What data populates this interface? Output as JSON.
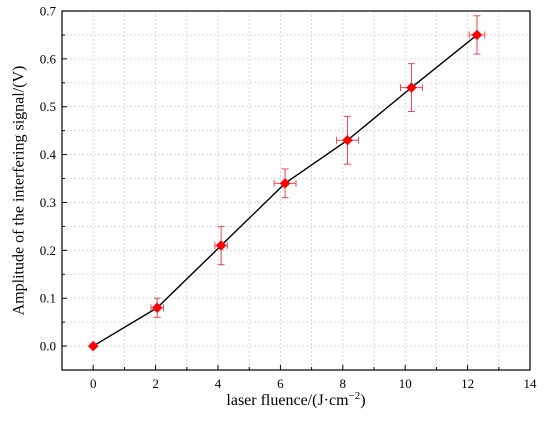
{
  "chart_data": {
    "type": "scatter",
    "title": "",
    "xlabel": "laser fluence/(J·cm",
    "xlabel_sup": "−2",
    "xlabel_close": ")",
    "ylabel": "Amplitude of the interfering signal/(V)",
    "xlim": [
      -1,
      14
    ],
    "ylim": [
      -0.05,
      0.7
    ],
    "x_ticks": [
      0,
      2,
      4,
      6,
      8,
      10,
      12,
      14
    ],
    "x_tick_labels": [
      "0",
      "2",
      "4",
      "6",
      "8",
      "10",
      "12",
      "14"
    ],
    "y_ticks": [
      0.0,
      0.1,
      0.2,
      0.3,
      0.4,
      0.5,
      0.6,
      0.7
    ],
    "y_tick_labels": [
      "0.0",
      "0.1",
      "0.2",
      "0.3",
      "0.4",
      "0.5",
      "0.6",
      "0.7"
    ],
    "grid": true,
    "series": [
      {
        "x": [
          0,
          2.05,
          4.1,
          6.15,
          8.15,
          10.2,
          12.3
        ],
        "y": [
          0.0,
          0.08,
          0.21,
          0.34,
          0.43,
          0.54,
          0.65
        ],
        "y_err": [
          0,
          0.02,
          0.04,
          0.03,
          0.05,
          0.05,
          0.04
        ],
        "x_err": [
          0,
          0.2,
          0.2,
          0.35,
          0.35,
          0.35,
          0.25
        ],
        "line_color": "#000000",
        "marker_color": "#ff0000",
        "errorbar_color": "#e8474f",
        "marker": "diamond"
      }
    ]
  }
}
